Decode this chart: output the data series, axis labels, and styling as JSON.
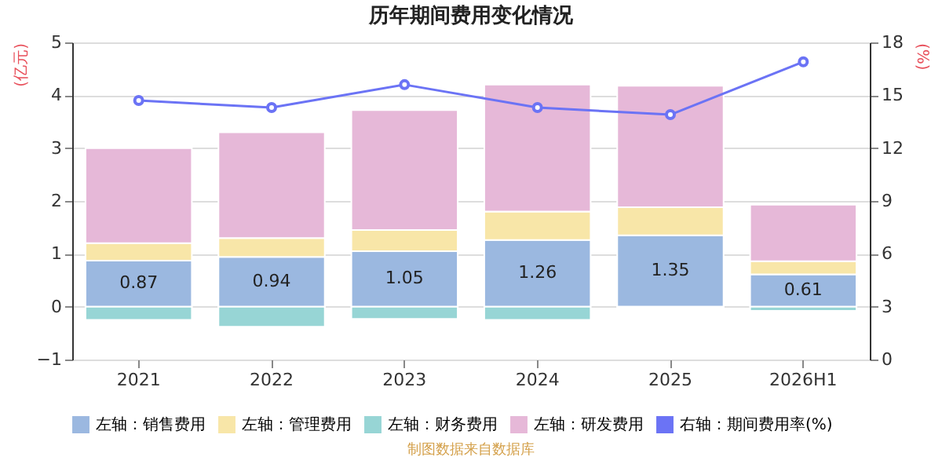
{
  "chart_data": {
    "type": "bar",
    "stacked": true,
    "title": "历年期间费用变化情况",
    "ylabel": "(亿元)",
    "y2label": "(%)",
    "categories": [
      "2021",
      "2022",
      "2023",
      "2024",
      "2025",
      "2026H1"
    ],
    "series": [
      {
        "name": "左轴：销售费用",
        "color": "#9bb8e0",
        "values": [
          0.87,
          0.94,
          1.05,
          1.26,
          1.35,
          0.61
        ],
        "value_labels": [
          "0.87",
          "0.94",
          "1.05",
          "1.26",
          "1.35",
          "0.61"
        ]
      },
      {
        "name": "左轴：管理费用",
        "color": "#f8e6a8",
        "values": [
          0.33,
          0.36,
          0.4,
          0.54,
          0.53,
          0.25
        ]
      },
      {
        "name": "左轴：财务费用",
        "color": "#97d5d5",
        "values": [
          -0.25,
          -0.38,
          -0.23,
          -0.25,
          -0.03,
          -0.08
        ]
      },
      {
        "name": "左轴：研发费用",
        "color": "#e6b8d8",
        "values": [
          1.8,
          2.0,
          2.27,
          2.4,
          2.3,
          1.07
        ]
      },
      {
        "name": "右轴：期间费用率(%)",
        "color": "#6b73f5",
        "type": "line",
        "axis": "y2",
        "marker": "circle",
        "values": [
          14.7,
          14.3,
          15.6,
          14.3,
          13.9,
          16.9
        ]
      }
    ],
    "ylim": [
      -1,
      5
    ],
    "yticks": [
      -1,
      0,
      1,
      2,
      3,
      4,
      5
    ],
    "y2lim": [
      0,
      18
    ],
    "y2ticks": [
      0,
      3,
      6,
      9,
      12,
      15,
      18
    ],
    "grid": "y",
    "legend": "bottom",
    "annotations": [
      "制图数据来自数据库"
    ]
  }
}
